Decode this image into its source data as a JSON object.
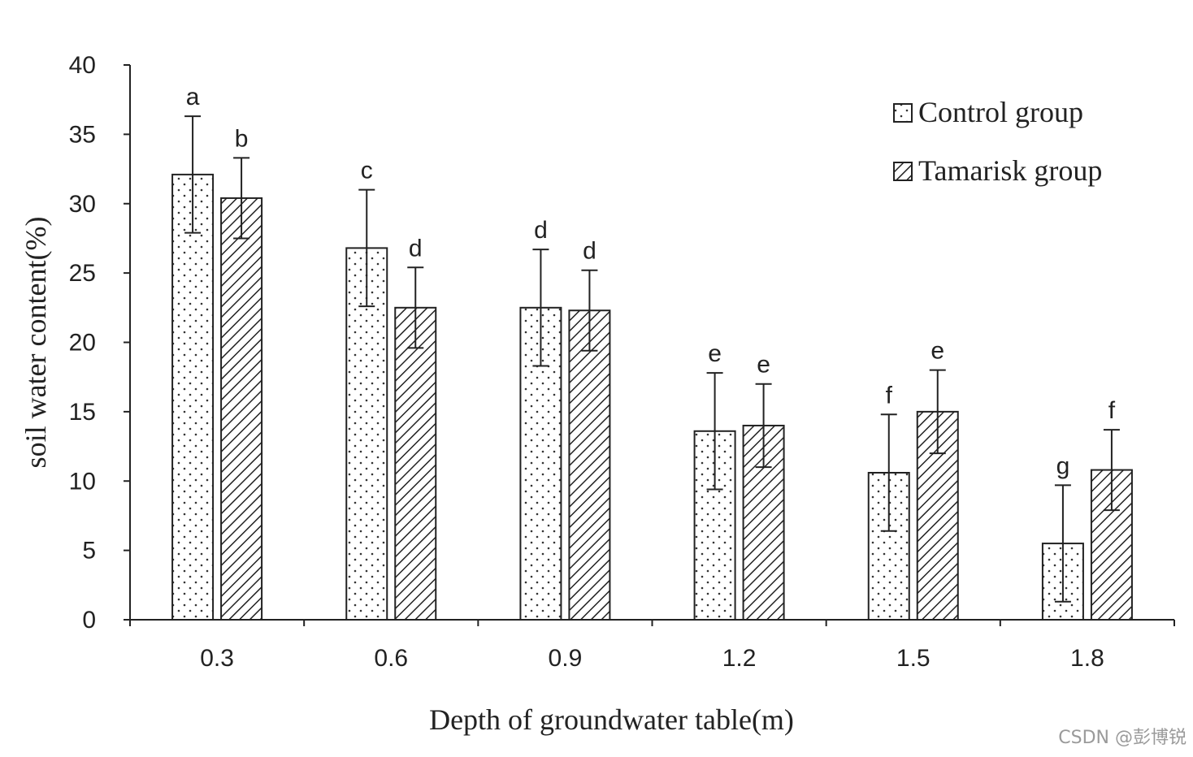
{
  "chart_data": {
    "type": "bar",
    "categories": [
      "0.3",
      "0.6",
      "0.9",
      "1.2",
      "1.5",
      "1.8"
    ],
    "xlabel": "Depth of groundwater table(m)",
    "ylabel": "soil water content(%)",
    "ylim": [
      0,
      40
    ],
    "yticks": [
      "0",
      "5",
      "10",
      "15",
      "20",
      "25",
      "30",
      "35",
      "40"
    ],
    "grid": false,
    "legend_position": "top-right",
    "series": [
      {
        "name": "Control group",
        "pattern": "dotted",
        "values": [
          32.1,
          26.8,
          22.5,
          13.6,
          10.6,
          5.5
        ],
        "errors": [
          4.2,
          4.2,
          4.2,
          4.2,
          4.2,
          4.2
        ],
        "letters": [
          "a",
          "c",
          "d",
          "e",
          "f",
          "g"
        ]
      },
      {
        "name": "Tamarisk group",
        "pattern": "hatched",
        "values": [
          30.4,
          22.5,
          22.3,
          14.0,
          15.0,
          10.8
        ],
        "errors": [
          2.9,
          2.9,
          2.9,
          3.0,
          3.0,
          2.9
        ],
        "letters": [
          "b",
          "d",
          "d",
          "e",
          "e",
          "f"
        ]
      }
    ]
  },
  "watermark": "CSDN @彭博锐",
  "colors": {
    "ink": "#222222",
    "background": "#ffffff"
  }
}
